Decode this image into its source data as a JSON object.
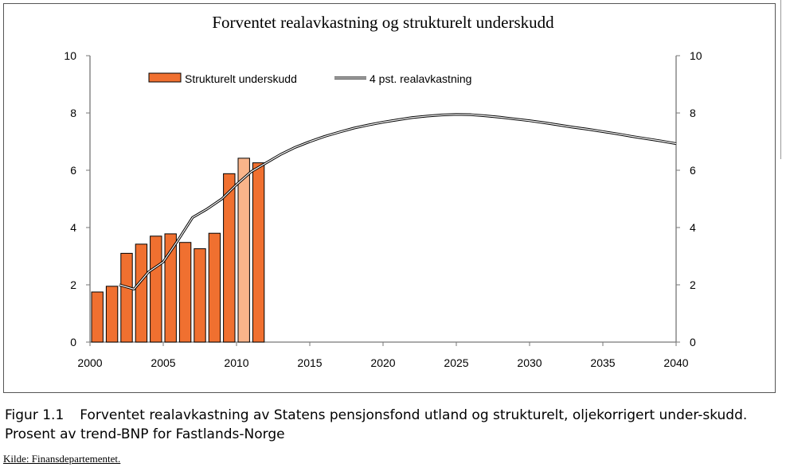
{
  "chart_data": {
    "type": "bar+line",
    "title": "Forventet realavkastning og strukturelt underskudd",
    "xlim": [
      2000,
      2040
    ],
    "ylim": [
      0,
      10
    ],
    "x_ticks": [
      "2000",
      "2005",
      "2010",
      "2015",
      "2020",
      "2025",
      "2030",
      "2035",
      "2040"
    ],
    "y_ticks": [
      "0",
      "2",
      "4",
      "6",
      "8",
      "10"
    ],
    "legend_position": "top",
    "series": [
      {
        "name": "Strukturelt underskudd",
        "type": "bar",
        "color": "#f07030",
        "highlight_color": "#f9b48a",
        "x": [
          2000,
          2001,
          2002,
          2003,
          2004,
          2005,
          2006,
          2007,
          2008,
          2009,
          2010,
          2011
        ],
        "values": [
          1.75,
          1.95,
          3.1,
          3.42,
          3.7,
          3.78,
          3.48,
          3.26,
          3.8,
          5.88,
          6.42,
          6.26
        ],
        "highlighted": [
          false,
          false,
          false,
          false,
          false,
          false,
          false,
          false,
          false,
          false,
          true,
          false
        ]
      },
      {
        "name": "4 pst. realavkastning",
        "type": "line",
        "color": "#000000",
        "x": [
          2002,
          2003,
          2004,
          2005,
          2006,
          2007,
          2008,
          2009,
          2010,
          2011,
          2012,
          2013,
          2014,
          2015,
          2016,
          2017,
          2018,
          2019,
          2020,
          2021,
          2022,
          2023,
          2024,
          2025,
          2026,
          2027,
          2028,
          2029,
          2030,
          2031,
          2032,
          2033,
          2034,
          2035,
          2036,
          2037,
          2038,
          2039,
          2040
        ],
        "values": [
          2.0,
          1.85,
          2.45,
          2.8,
          3.55,
          4.35,
          4.65,
          5.0,
          5.5,
          5.95,
          6.25,
          6.55,
          6.8,
          7.0,
          7.18,
          7.33,
          7.47,
          7.58,
          7.68,
          7.76,
          7.84,
          7.89,
          7.93,
          7.95,
          7.94,
          7.9,
          7.85,
          7.79,
          7.73,
          7.66,
          7.58,
          7.5,
          7.43,
          7.35,
          7.27,
          7.18,
          7.1,
          7.02,
          6.93
        ]
      }
    ]
  },
  "caption": {
    "number": "Figur 1.1",
    "text": "Forventet realavkastning av Statens pensjonsfond utland og strukturelt, oljekorrigert under-skudd. Prosent av trend-BNP for Fastlands-Norge"
  },
  "source": "Kilde: Finansdepartementet."
}
